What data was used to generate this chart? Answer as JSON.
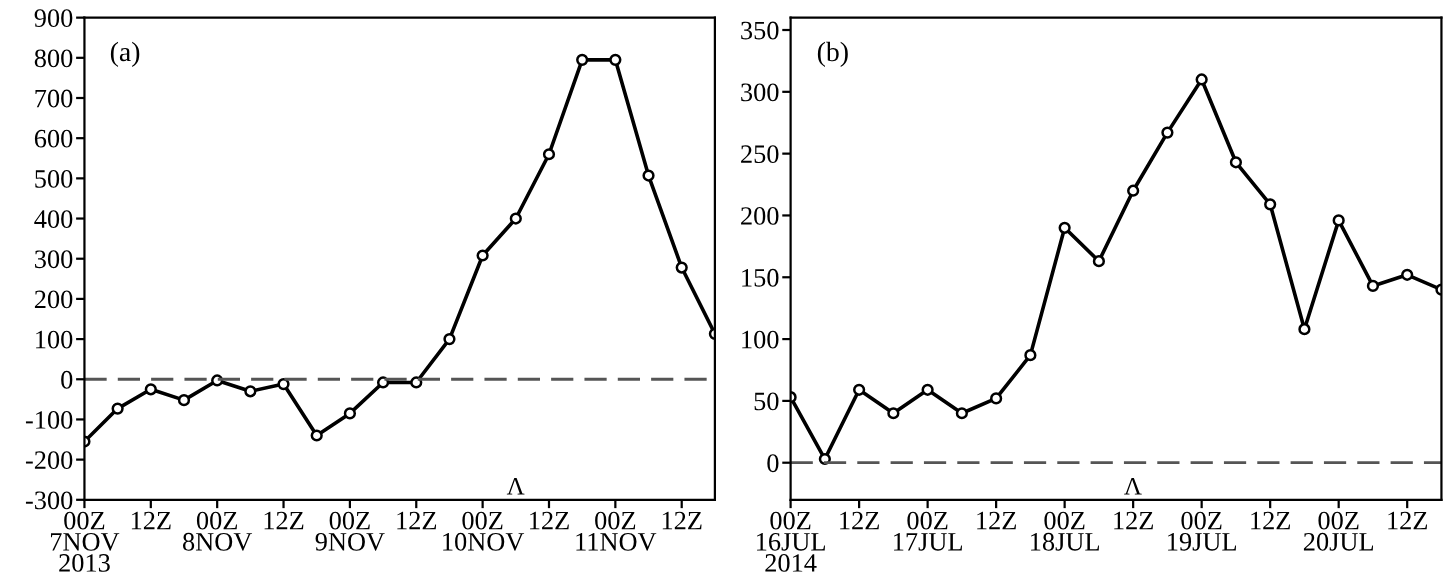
{
  "chart_data": [
    {
      "type": "line",
      "title": "(a)",
      "categories": [
        "00Z\n7NOV\n2013",
        null,
        "12Z",
        null,
        "00Z\n8NOV",
        null,
        "12Z",
        null,
        "00Z\n9NOV",
        null,
        "12Z",
        null,
        "00Z\n10NOV",
        null,
        "12Z",
        null,
        "00Z\n11NOV",
        null,
        "12Z",
        null
      ],
      "series": [
        {
          "color": "#000000",
          "values": [
            -155,
            -73,
            -25,
            -52,
            -3,
            -30,
            -12,
            -140,
            -85,
            -8,
            -8,
            100,
            308,
            400,
            560,
            795,
            795,
            507,
            278,
            113
          ]
        }
      ],
      "ylim": [
        -300,
        900
      ],
      "yticks": [
        -300,
        -200,
        -100,
        0,
        100,
        200,
        300,
        400,
        500,
        600,
        700,
        800,
        900
      ],
      "ref_lines": [
        {
          "axis": "y",
          "value": 0,
          "line_style": "dashed",
          "color": "#555555"
        }
      ],
      "annotations": [
        "Λ"
      ],
      "marker": "circle",
      "line_style": "solid"
    },
    {
      "type": "line",
      "title": "(b)",
      "categories": [
        "00Z\n16JUL\n2014",
        null,
        "12Z",
        null,
        "00Z\n17JUL",
        null,
        "12Z",
        null,
        "00Z\n18JUL",
        null,
        "12Z",
        null,
        "00Z\n19JUL",
        null,
        "12Z",
        null,
        "00Z\n20JUL",
        null,
        "12Z",
        null
      ],
      "series": [
        {
          "color": "#000000",
          "values": [
            53,
            3,
            59,
            40,
            59,
            40,
            52,
            87,
            190,
            163,
            220,
            267,
            310,
            243,
            209,
            108,
            196,
            143,
            152,
            140
          ]
        }
      ],
      "ylim": [
        -30,
        360
      ],
      "yticks": [
        0,
        50,
        100,
        150,
        200,
        250,
        300,
        350
      ],
      "ref_lines": [
        {
          "axis": "y",
          "value": 0,
          "line_style": "dashed",
          "color": "#555555"
        }
      ],
      "annotations": [
        "Λ"
      ],
      "marker": "circle",
      "line_style": "solid"
    }
  ]
}
